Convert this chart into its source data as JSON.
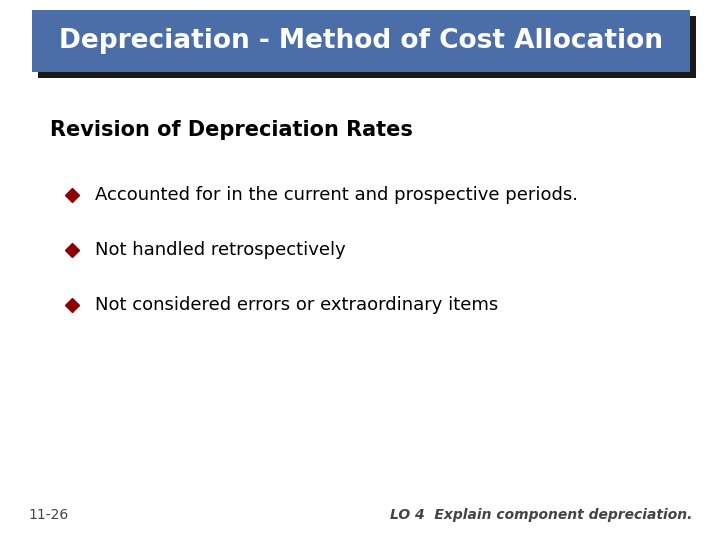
{
  "title": "Depreciation - Method of Cost Allocation",
  "title_bg_color": "#4B6EA8",
  "title_text_color": "#FFFFFF",
  "title_shadow_color": "#1A1A1A",
  "subtitle": "Revision of Depreciation Rates",
  "subtitle_color": "#000000",
  "bullet_color": "#8B0000",
  "bullet_items": [
    "Accounted for in the current and prospective periods.",
    "Not handled retrospectively",
    "Not considered errors or extraordinary items"
  ],
  "bullet_text_color": "#000000",
  "footer_left": "11-26",
  "footer_right": "LO 4  Explain component depreciation.",
  "footer_color": "#444444",
  "bg_color": "#FFFFFF",
  "title_fontsize": 19,
  "subtitle_fontsize": 15,
  "bullet_fontsize": 13,
  "footer_fontsize": 10
}
